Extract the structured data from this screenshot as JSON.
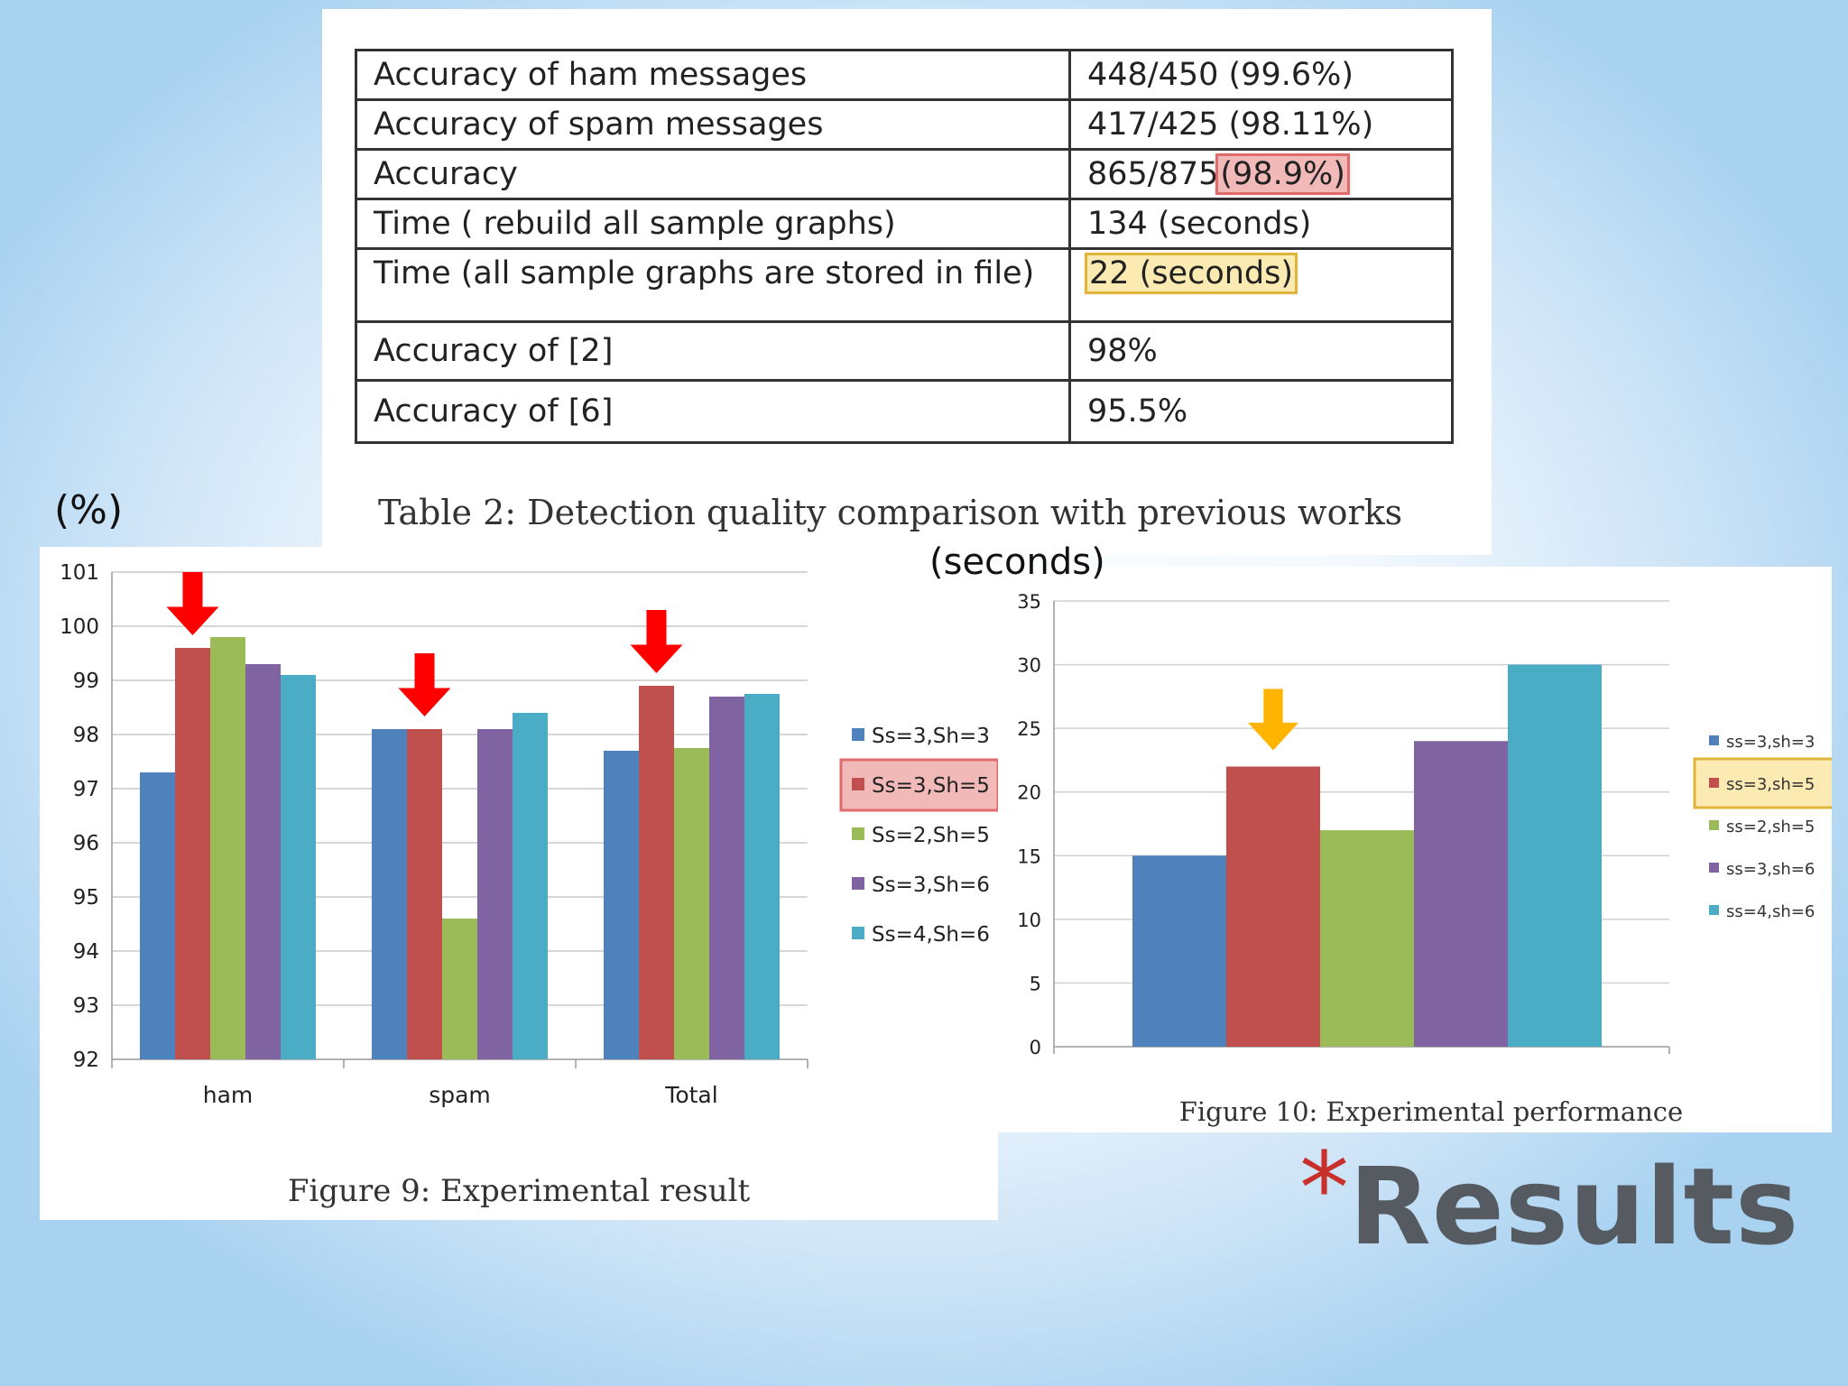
{
  "table": {
    "rows": [
      {
        "label": "Accuracy of ham messages",
        "value": "448/450 (99.6%)"
      },
      {
        "label": "Accuracy of spam messages",
        "value": "417/425 (98.11%)"
      },
      {
        "label": "Accuracy",
        "value_prefix": "865/875",
        "value_highlight": "(98.9%)"
      },
      {
        "label": "Time ( rebuild all sample graphs)",
        "value": "134 (seconds)"
      },
      {
        "label": "Time (all sample graphs are stored in file)",
        "value_highlight": "22 (seconds)"
      },
      {
        "label": "Accuracy of [2]",
        "value": "98%"
      },
      {
        "label": "Accuracy of [6]",
        "value": "95.5%"
      }
    ],
    "caption": "Table 2: Detection quality comparison with previous works",
    "highlight_colors": {
      "red": "#e06b6b",
      "yellow": "#e0b43a"
    }
  },
  "chart_data": [
    {
      "type": "bar",
      "title": "Figure 9: Experimental result",
      "ylabel": "(%)",
      "categories": [
        "ham",
        "spam",
        "Total"
      ],
      "ylim": [
        92,
        101
      ],
      "yticks": [
        "92",
        "93",
        "94",
        "95",
        "96",
        "97",
        "98",
        "99",
        "100",
        "101"
      ],
      "grid": true,
      "legend_position": "right",
      "series": [
        {
          "name": "Ss=3,Sh=3",
          "values": [
            97.3,
            98.1,
            97.7
          ],
          "color": "#4f81bd"
        },
        {
          "name": "Ss=3,Sh=5",
          "values": [
            99.6,
            98.1,
            98.9
          ],
          "color": "#c0504d"
        },
        {
          "name": "Ss=2,Sh=5",
          "values": [
            99.8,
            94.6,
            97.75
          ],
          "color": "#9bbb59"
        },
        {
          "name": "Ss=3,Sh=6",
          "values": [
            99.3,
            98.1,
            98.7
          ],
          "color": "#8064a2"
        },
        {
          "name": "Ss=4,Sh=6",
          "values": [
            99.1,
            98.4,
            98.75
          ],
          "color": "#4bacc6"
        }
      ],
      "highlighted_series": "Ss=3,Sh=5",
      "arrow_color": "#ff0000"
    },
    {
      "type": "bar",
      "title": "Figure 10: Experimental performance",
      "ylabel": "(seconds)",
      "categories": [
        "ss=3,sh=3",
        "ss=3,sh=5",
        "ss=2,sh=5",
        "ss=3,sh=6",
        "ss=4,sh=6"
      ],
      "values": [
        15,
        22,
        17,
        24,
        30
      ],
      "colors": [
        "#4f81bd",
        "#c0504d",
        "#9bbb59",
        "#8064a2",
        "#4bacc6"
      ],
      "ylim": [
        0,
        35
      ],
      "yticks": [
        "0",
        "5",
        "10",
        "15",
        "20",
        "25",
        "30",
        "35"
      ],
      "grid": true,
      "legend_position": "right",
      "highlighted_series": "ss=3,sh=5",
      "arrow_color": "#ffb400"
    }
  ],
  "slide": {
    "title": "Results",
    "bullet": "*"
  }
}
